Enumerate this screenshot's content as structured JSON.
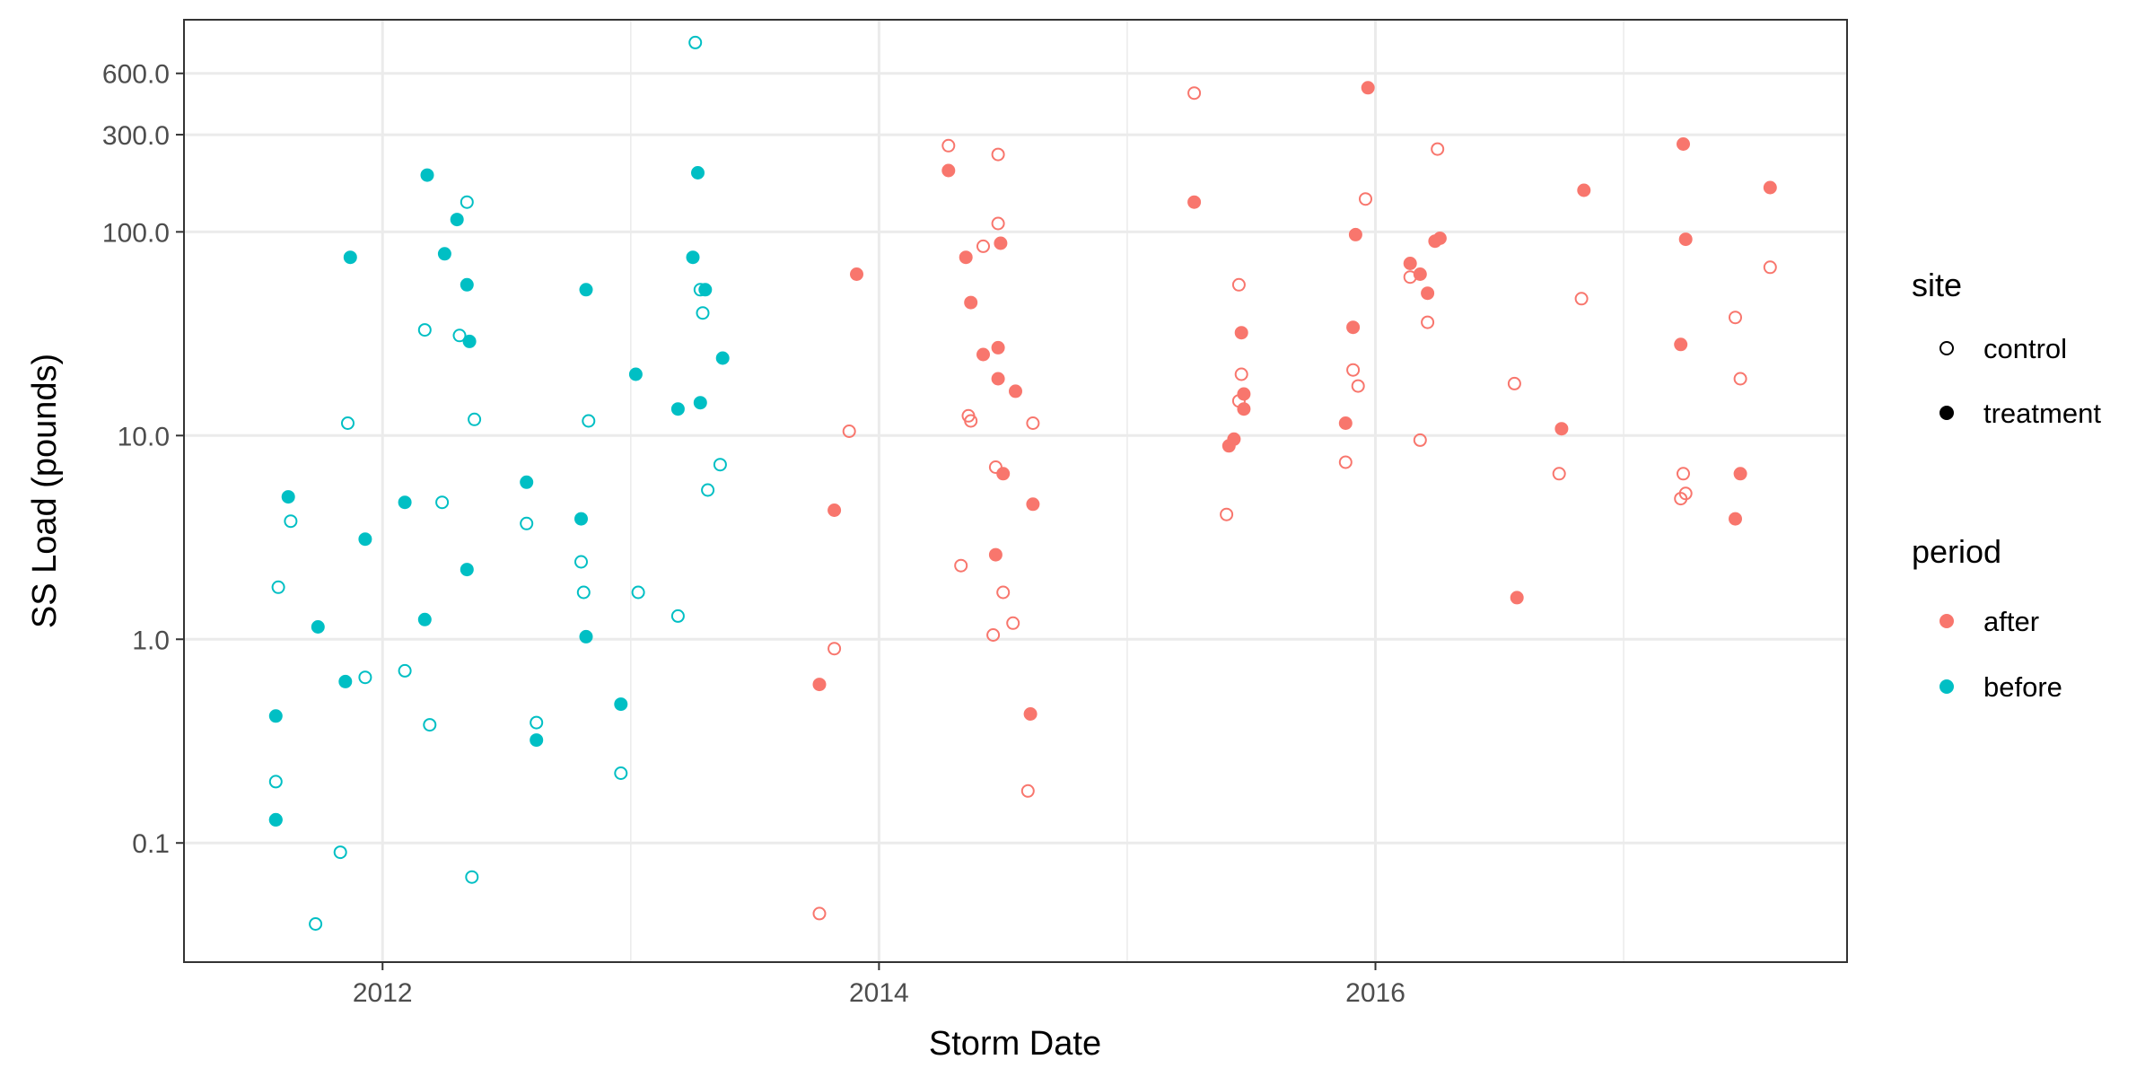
{
  "chart_data": {
    "type": "scatter",
    "title": "",
    "xlabel": "Storm Date",
    "ylabel": "SS Load (pounds)",
    "y_scale": "log10",
    "xlim": [
      2011.2,
      2017.9
    ],
    "ylim": [
      0.026,
      1100
    ],
    "x_ticks": [
      2012,
      2014,
      2016
    ],
    "x_tick_labels": [
      "2012",
      "2014",
      "2016"
    ],
    "y_ticks": [
      0.1,
      1,
      10,
      100,
      300,
      600
    ],
    "y_tick_labels": [
      "0.1",
      "1.0",
      "10.0",
      "100.0",
      "300.0",
      "600.0"
    ],
    "grid": true,
    "colors": {
      "after": "#F8766D",
      "before": "#00BFC4"
    },
    "legend": {
      "position": "right",
      "site": {
        "title": "site",
        "entries": [
          "control",
          "treatment"
        ]
      },
      "period": {
        "title": "period",
        "entries": [
          "after",
          "before"
        ]
      }
    },
    "series": [
      {
        "name": "before-control",
        "period": "before",
        "site": "control",
        "x": [
          2011.57,
          2011.63,
          2011.58,
          2011.57,
          2011.73,
          2011.83,
          2011.86,
          2011.93,
          2012.09,
          2012.17,
          2012.19,
          2012.24,
          2012.31,
          2012.34,
          2012.37,
          2012.36,
          2012.58,
          2012.62,
          2012.8,
          2012.81,
          2012.83,
          2012.96,
          2013.03,
          2013.19,
          2013.26,
          2013.28,
          2013.29,
          2013.31,
          2013.36
        ],
        "y": [
          0.2,
          3.8,
          1.8,
          0.13,
          0.04,
          0.09,
          11.5,
          0.65,
          0.7,
          33,
          0.38,
          4.7,
          31,
          140,
          12,
          0.068,
          3.7,
          0.39,
          2.4,
          1.7,
          11.8,
          0.22,
          1.7,
          1.3,
          850,
          52,
          40,
          5.4,
          7.2
        ]
      },
      {
        "name": "before-treatment",
        "period": "before",
        "site": "treatment",
        "x": [
          2011.57,
          2011.62,
          2011.57,
          2011.74,
          2011.85,
          2011.87,
          2011.93,
          2012.09,
          2012.17,
          2012.18,
          2012.25,
          2012.3,
          2012.34,
          2012.35,
          2012.34,
          2012.58,
          2012.62,
          2012.8,
          2012.82,
          2012.82,
          2012.96,
          2013.02,
          2013.19,
          2013.25,
          2013.27,
          2013.28,
          2013.3,
          2013.37
        ],
        "y": [
          0.42,
          5.0,
          0.13,
          1.15,
          0.62,
          75,
          3.1,
          4.7,
          1.25,
          190,
          78,
          115,
          55,
          29,
          2.2,
          5.9,
          0.32,
          3.9,
          1.03,
          52,
          0.48,
          20,
          13.5,
          75,
          195,
          14.5,
          52,
          24
        ]
      },
      {
        "name": "after-control",
        "period": "after",
        "site": "control",
        "x": [
          2013.76,
          2013.82,
          2013.88,
          2014.28,
          2014.33,
          2014.36,
          2014.37,
          2014.42,
          2014.46,
          2014.47,
          2014.48,
          2014.48,
          2014.5,
          2014.54,
          2014.6,
          2014.62,
          2015.27,
          2015.4,
          2015.45,
          2015.45,
          2015.46,
          2015.88,
          2015.91,
          2015.93,
          2015.96,
          2016.14,
          2016.18,
          2016.21,
          2016.25,
          2016.56,
          2016.74,
          2016.83,
          2017.23,
          2017.24,
          2017.25,
          2017.45,
          2017.47,
          2017.59
        ],
        "y": [
          0.045,
          0.9,
          10.5,
          265,
          2.3,
          12.5,
          11.8,
          85,
          1.05,
          7.0,
          240,
          110,
          1.7,
          1.2,
          0.18,
          11.5,
          480,
          4.1,
          14.8,
          55,
          20,
          7.4,
          21,
          17.5,
          145,
          60,
          9.5,
          36,
          255,
          18,
          6.5,
          47,
          4.9,
          6.5,
          5.2,
          38,
          19,
          67
        ]
      },
      {
        "name": "after-treatment",
        "period": "after",
        "site": "treatment",
        "x": [
          2013.76,
          2013.82,
          2013.91,
          2014.28,
          2014.35,
          2014.37,
          2014.42,
          2014.47,
          2014.48,
          2014.49,
          2014.48,
          2014.5,
          2014.55,
          2014.61,
          2014.62,
          2015.27,
          2015.41,
          2015.43,
          2015.46,
          2015.47,
          2015.47,
          2015.88,
          2015.91,
          2015.92,
          2015.97,
          2016.14,
          2016.18,
          2016.21,
          2016.24,
          2016.26,
          2016.57,
          2016.75,
          2016.84,
          2017.23,
          2017.24,
          2017.25,
          2017.45,
          2017.47,
          2017.59
        ],
        "y": [
          0.6,
          4.3,
          62,
          200,
          75,
          45,
          25,
          2.6,
          19,
          88,
          27,
          6.5,
          16.5,
          0.43,
          4.6,
          140,
          8.9,
          9.6,
          32,
          16,
          13.5,
          11.5,
          34,
          97,
          510,
          70,
          62,
          50,
          90,
          93,
          1.6,
          10.8,
          160,
          28,
          270,
          92,
          3.9,
          6.5,
          165
        ]
      }
    ]
  }
}
